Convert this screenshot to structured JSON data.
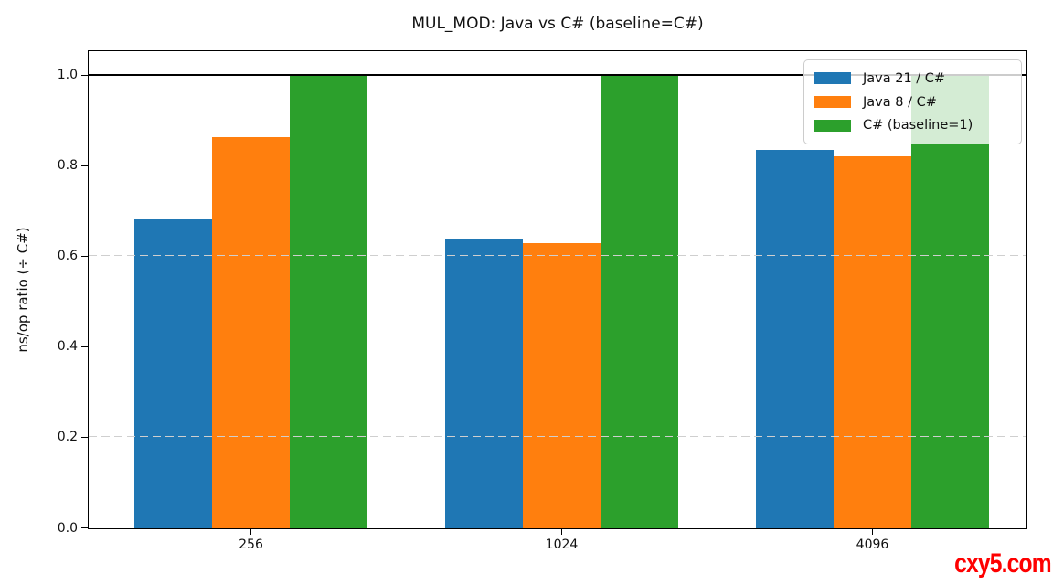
{
  "title": "MUL_MOD: Java vs C# (baseline=C#)",
  "watermark": {
    "text": "cxy5.com",
    "color": "#fe0000"
  },
  "chart_data": {
    "type": "bar",
    "title": "MUL_MOD: Java vs C# (baseline=C#)",
    "xlabel": "",
    "ylabel": "ns/op ratio (÷ C#)",
    "categories": [
      "256",
      "1024",
      "4096"
    ],
    "series": [
      {
        "name": "Java 21 / C#",
        "color": "#1f77b4",
        "values": [
          0.683,
          0.639,
          0.835
        ]
      },
      {
        "name": "Java 8 / C#",
        "color": "#ff7f0e",
        "values": [
          0.865,
          0.631,
          0.821
        ]
      },
      {
        "name": "C# (baseline=1)",
        "color": "#2ca02c",
        "values": [
          1.0,
          1.0,
          1.0
        ]
      }
    ],
    "yticks": [
      0.0,
      0.2,
      0.4,
      0.6,
      0.8,
      1.0
    ],
    "ylim": [
      0,
      1.052
    ],
    "baseline": 1.0,
    "grid": "dashed-horizontal",
    "gridline_color": "#cfcfcf",
    "legend_position": "upper right"
  }
}
